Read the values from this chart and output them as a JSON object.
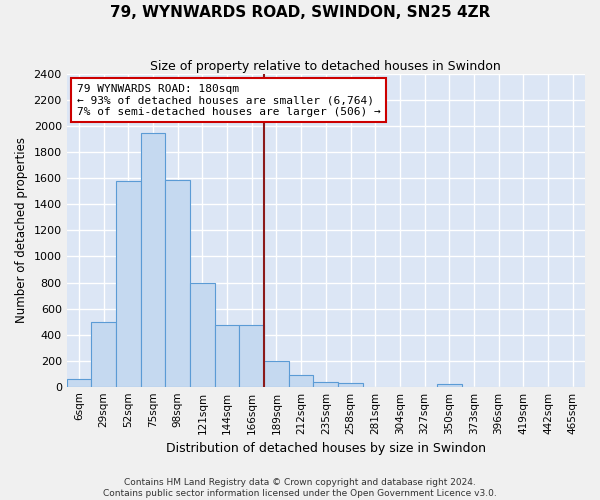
{
  "title": "79, WYNWARDS ROAD, SWINDON, SN25 4ZR",
  "subtitle": "Size of property relative to detached houses in Swindon",
  "xlabel": "Distribution of detached houses by size in Swindon",
  "ylabel": "Number of detached properties",
  "categories": [
    "6sqm",
    "29sqm",
    "52sqm",
    "75sqm",
    "98sqm",
    "121sqm",
    "144sqm",
    "166sqm",
    "189sqm",
    "212sqm",
    "235sqm",
    "258sqm",
    "281sqm",
    "304sqm",
    "327sqm",
    "350sqm",
    "373sqm",
    "396sqm",
    "419sqm",
    "442sqm",
    "465sqm"
  ],
  "bar_heights": [
    60,
    500,
    1580,
    1950,
    1590,
    800,
    475,
    475,
    195,
    90,
    35,
    28,
    0,
    0,
    0,
    20,
    0,
    0,
    0,
    0,
    0
  ],
  "bar_color": "#c5d9f0",
  "bar_edge_color": "#5b9bd5",
  "vline_color": "#8b1a1a",
  "vline_x_index": 7.5,
  "annotation_text": "79 WYNWARDS ROAD: 180sqm\n← 93% of detached houses are smaller (6,764)\n7% of semi-detached houses are larger (506) →",
  "annotation_box_color": "#ffffff",
  "annotation_box_edge_color": "#cc0000",
  "ylim": [
    0,
    2400
  ],
  "yticks": [
    0,
    200,
    400,
    600,
    800,
    1000,
    1200,
    1400,
    1600,
    1800,
    2000,
    2200,
    2400
  ],
  "background_color": "#dce6f5",
  "grid_color": "#ffffff",
  "fig_bg_color": "#f0f0f0",
  "footer_line1": "Contains HM Land Registry data © Crown copyright and database right 2024.",
  "footer_line2": "Contains public sector information licensed under the Open Government Licence v3.0."
}
